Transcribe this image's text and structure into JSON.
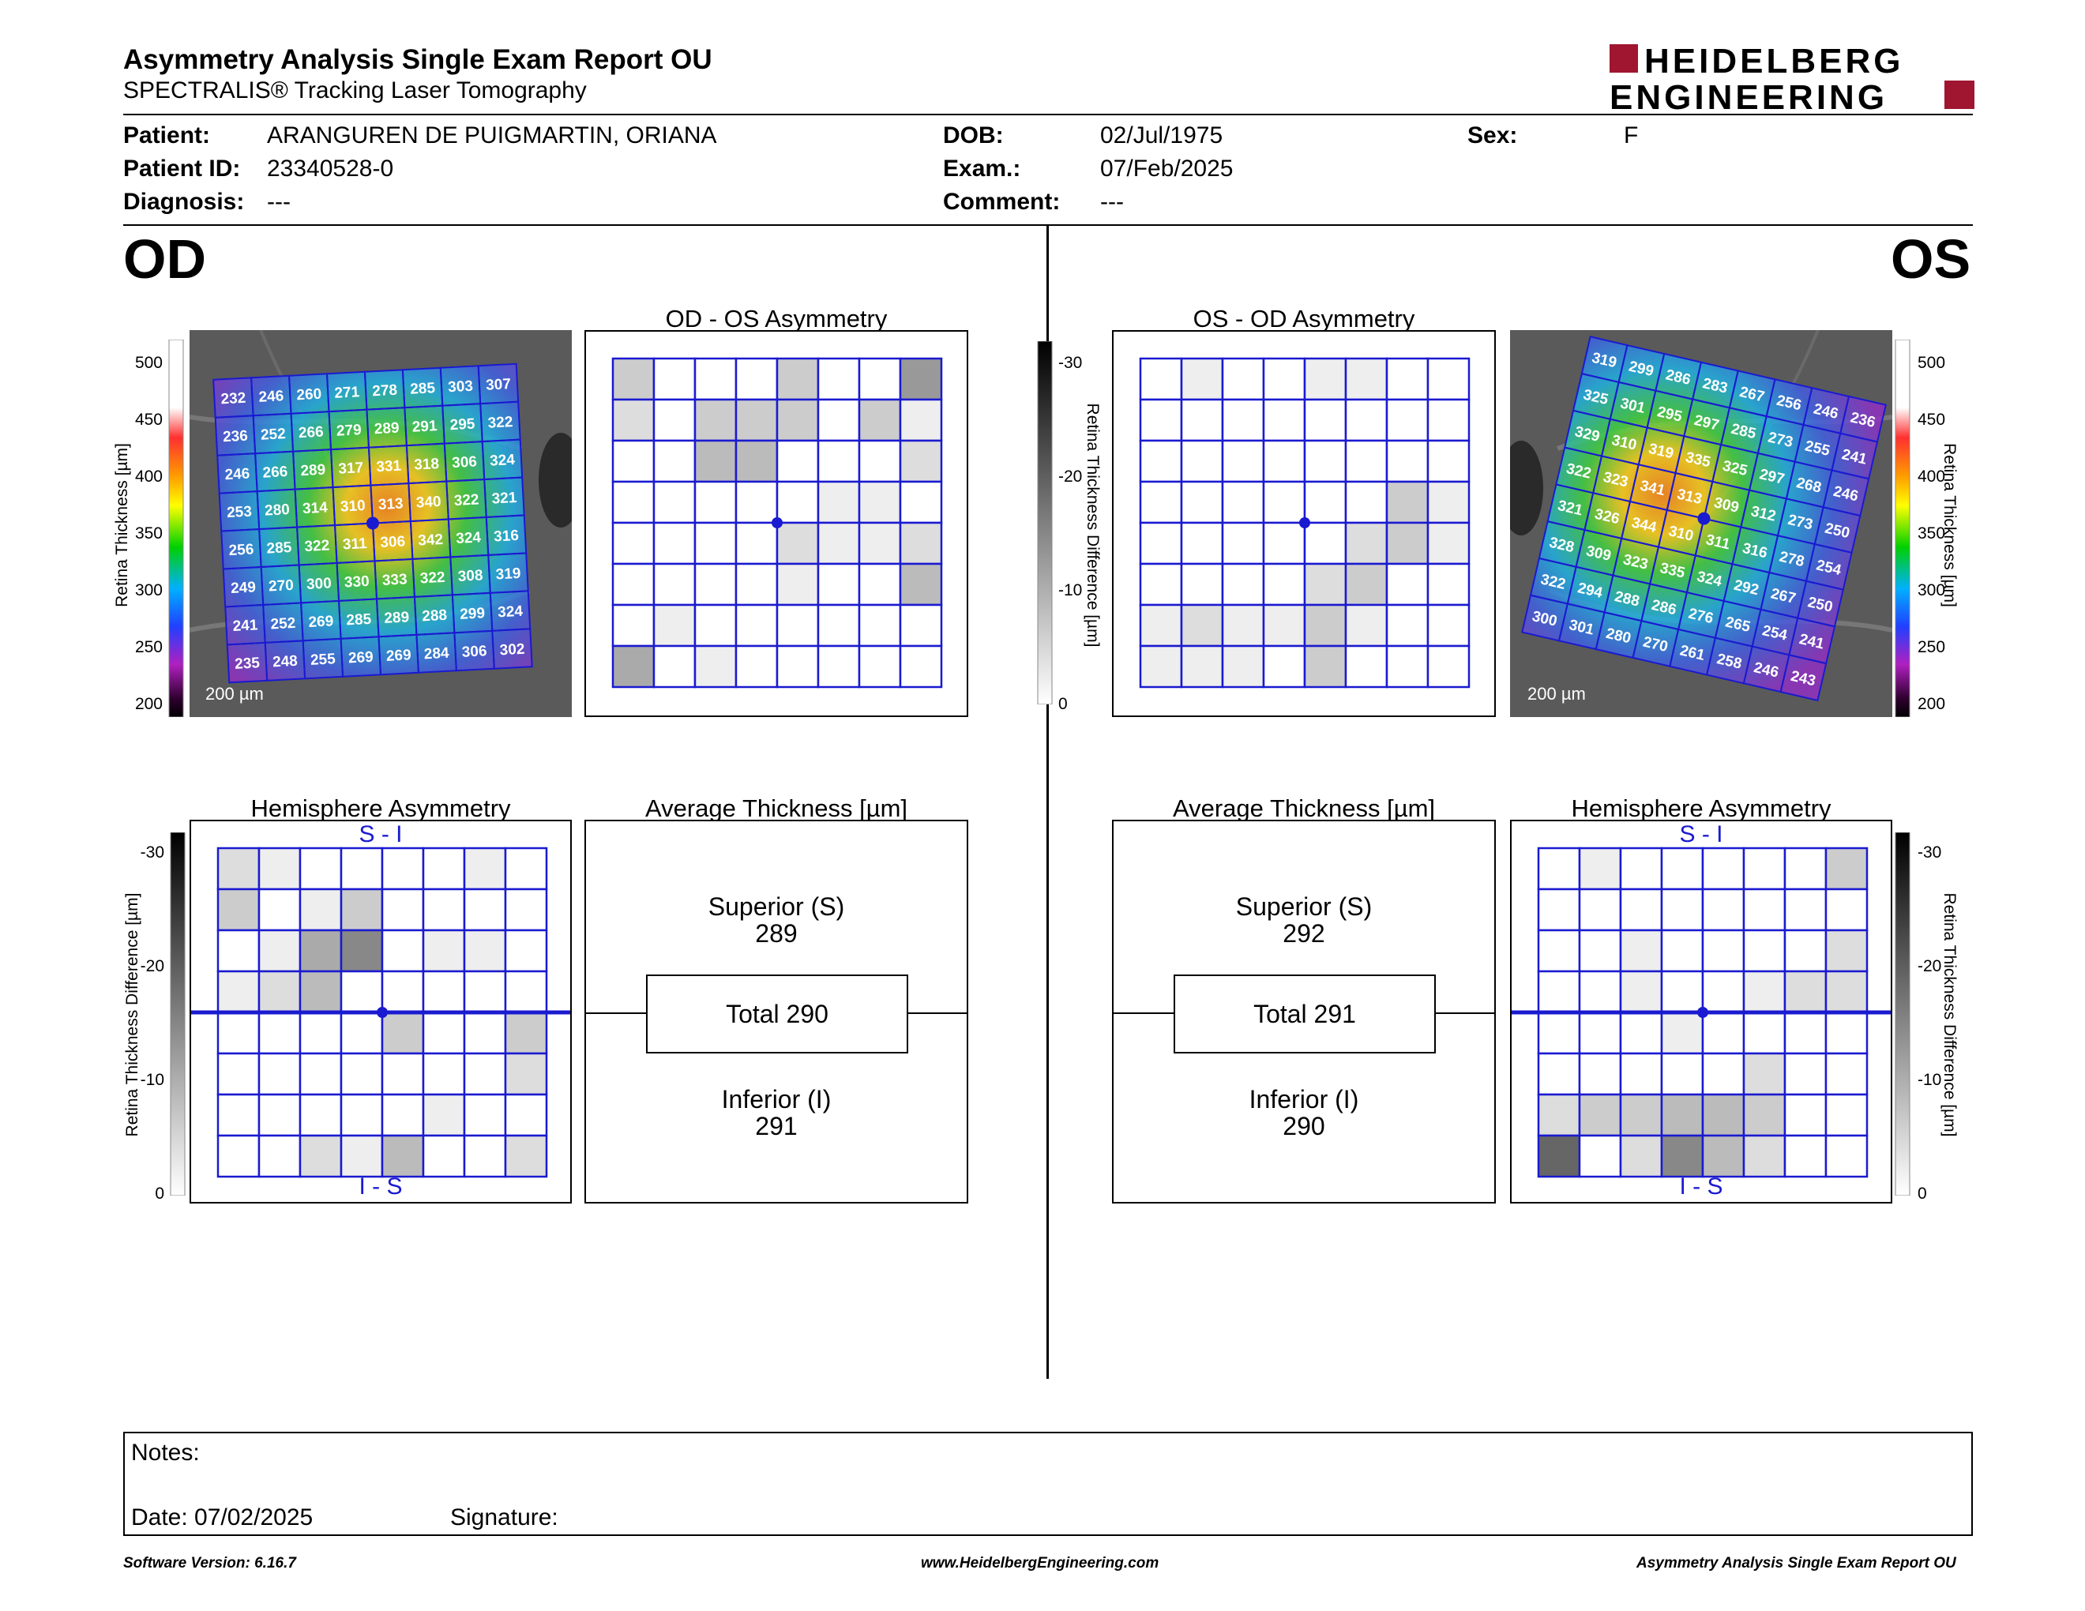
{
  "header": {
    "title": "Asymmetry Analysis Single Exam Report OU",
    "subtitle": "SPECTRALIS® Tracking Laser Tomography",
    "logo_line1": "HEIDELBERG",
    "logo_line2": "ENGINEERING"
  },
  "patient": {
    "patient_label": "Patient:",
    "patient_value": "ARANGUREN DE PUIGMARTIN, ORIANA",
    "id_label": "Patient ID:",
    "id_value": "23340528-0",
    "diag_label": "Diagnosis:",
    "diag_value": "---",
    "dob_label": "DOB:",
    "dob_value": "02/Jul/1975",
    "exam_label": "Exam.:",
    "exam_value": "07/Feb/2025",
    "comment_label": "Comment:",
    "comment_value": "---",
    "sex_label": "Sex:",
    "sex_value": "F"
  },
  "od": {
    "label": "OD",
    "asym_title": "OD - OS Asymmetry",
    "hemi_title": "Hemisphere Asymmetry",
    "avg_title": "Average Thickness [µm]",
    "hemi_top": "S - I",
    "hemi_bottom": "I - S",
    "superior_label": "Superior (S)",
    "superior_value": "289",
    "total_label": "Total 290",
    "inferior_label": "Inferior (I)",
    "inferior_value": "291",
    "scale_bar": "200 µm",
    "thickness_grid": [
      [
        232,
        246,
        260,
        271,
        278,
        285,
        303,
        307
      ],
      [
        236,
        252,
        266,
        279,
        289,
        291,
        295,
        322
      ],
      [
        246,
        266,
        289,
        317,
        331,
        318,
        306,
        324
      ],
      [
        253,
        280,
        314,
        310,
        313,
        340,
        322,
        321
      ],
      [
        256,
        285,
        322,
        311,
        306,
        342,
        324,
        316
      ],
      [
        249,
        270,
        300,
        330,
        333,
        322,
        308,
        319
      ],
      [
        241,
        252,
        269,
        285,
        289,
        288,
        299,
        324
      ],
      [
        235,
        248,
        255,
        269,
        269,
        284,
        306,
        302
      ]
    ],
    "asym_grid": [
      [
        3,
        0,
        0,
        0,
        3,
        0,
        0,
        6
      ],
      [
        2,
        0,
        3,
        3,
        3,
        0,
        3,
        1
      ],
      [
        0,
        0,
        4,
        4,
        0,
        0,
        0,
        2
      ],
      [
        0,
        0,
        0,
        0,
        0,
        1,
        1,
        0
      ],
      [
        0,
        0,
        0,
        0,
        2,
        1,
        1,
        2
      ],
      [
        0,
        0,
        0,
        0,
        1,
        0,
        0,
        4
      ],
      [
        0,
        1,
        0,
        0,
        0,
        0,
        0,
        0
      ],
      [
        5,
        0,
        1,
        0,
        0,
        0,
        0,
        0
      ]
    ],
    "hemi_grid": [
      [
        2,
        1,
        0,
        0,
        0,
        0,
        1,
        0
      ],
      [
        3,
        0,
        1,
        3,
        0,
        0,
        0,
        0
      ],
      [
        0,
        1,
        5,
        7,
        0,
        1,
        1,
        0
      ],
      [
        1,
        2,
        4,
        0,
        0,
        0,
        0,
        0
      ],
      [
        0,
        0,
        0,
        0,
        3,
        0,
        0,
        3
      ],
      [
        0,
        0,
        0,
        0,
        0,
        0,
        0,
        2
      ],
      [
        0,
        0,
        0,
        0,
        0,
        1,
        0,
        0
      ],
      [
        0,
        0,
        2,
        1,
        4,
        0,
        0,
        2
      ]
    ]
  },
  "os": {
    "label": "OS",
    "asym_title": "OS - OD Asymmetry",
    "hemi_title": "Hemisphere Asymmetry",
    "avg_title": "Average Thickness [µm]",
    "hemi_top": "S - I",
    "hemi_bottom": "I - S",
    "superior_label": "Superior (S)",
    "superior_value": "292",
    "total_label": "Total 291",
    "inferior_label": "Inferior (I)",
    "inferior_value": "290",
    "scale_bar": "200 µm",
    "thickness_grid": [
      [
        319,
        299,
        286,
        283,
        267,
        256,
        246,
        236
      ],
      [
        325,
        301,
        295,
        297,
        285,
        273,
        255,
        241
      ],
      [
        329,
        310,
        319,
        335,
        325,
        297,
        268,
        246
      ],
      [
        322,
        323,
        341,
        313,
        309,
        312,
        273,
        250
      ],
      [
        321,
        326,
        344,
        310,
        311,
        316,
        278,
        254
      ],
      [
        328,
        309,
        323,
        335,
        324,
        292,
        267,
        250
      ],
      [
        322,
        294,
        288,
        286,
        276,
        265,
        254,
        241
      ],
      [
        300,
        301,
        280,
        270,
        261,
        258,
        246,
        243
      ]
    ],
    "asym_grid": [
      [
        0,
        1,
        0,
        0,
        1,
        1,
        0,
        0
      ],
      [
        0,
        0,
        0,
        0,
        0,
        0,
        0,
        0
      ],
      [
        0,
        0,
        0,
        0,
        0,
        0,
        0,
        0
      ],
      [
        0,
        0,
        0,
        0,
        0,
        0,
        3,
        1
      ],
      [
        0,
        0,
        0,
        0,
        0,
        2,
        3,
        1
      ],
      [
        0,
        0,
        0,
        0,
        2,
        3,
        0,
        0
      ],
      [
        1,
        2,
        1,
        1,
        3,
        1,
        0,
        0
      ],
      [
        1,
        1,
        1,
        0,
        3,
        0,
        0,
        0
      ]
    ],
    "hemi_grid": [
      [
        0,
        1,
        0,
        0,
        0,
        0,
        0,
        3
      ],
      [
        0,
        0,
        0,
        0,
        0,
        0,
        0,
        0
      ],
      [
        0,
        0,
        1,
        0,
        0,
        0,
        0,
        2
      ],
      [
        0,
        0,
        1,
        0,
        0,
        1,
        2,
        2
      ],
      [
        0,
        0,
        0,
        1,
        0,
        0,
        0,
        0
      ],
      [
        0,
        0,
        0,
        0,
        0,
        2,
        0,
        0
      ],
      [
        2,
        3,
        3,
        4,
        4,
        3,
        0,
        0
      ],
      [
        9,
        0,
        2,
        7,
        4,
        2,
        0,
        0
      ]
    ]
  },
  "scales": {
    "thickness_ticks": [
      "500",
      "450",
      "400",
      "350",
      "300",
      "250",
      "200"
    ],
    "thickness_label": "Retina Thickness [µm]",
    "diff_ticks": [
      "-30",
      "-20",
      "-10",
      "0"
    ],
    "diff_label": "Retina Thickness Difference [µm]"
  },
  "notes": {
    "notes_label": "Notes:",
    "date_label": "Date: 07/02/2025",
    "signature_label": "Signature:"
  },
  "footer": {
    "software": "Software Version: 6.16.7",
    "website": "www.HeidelbergEngineering.com",
    "report": "Asymmetry Analysis Single Exam Report OU"
  }
}
